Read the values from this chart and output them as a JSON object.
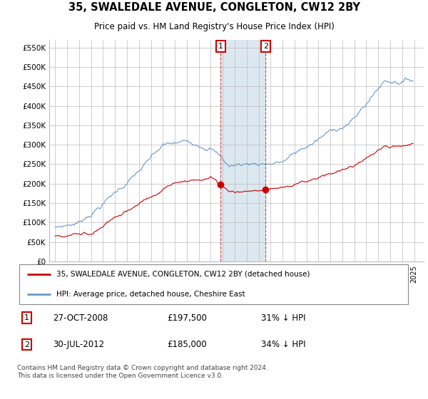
{
  "title": "35, SWALEDALE AVENUE, CONGLETON, CW12 2BY",
  "subtitle": "Price paid vs. HM Land Registry's House Price Index (HPI)",
  "ylabel_ticks": [
    "£0",
    "£50K",
    "£100K",
    "£150K",
    "£200K",
    "£250K",
    "£300K",
    "£350K",
    "£400K",
    "£450K",
    "£500K",
    "£550K"
  ],
  "ytick_values": [
    0,
    50000,
    100000,
    150000,
    200000,
    250000,
    300000,
    350000,
    400000,
    450000,
    500000,
    550000
  ],
  "ylim": [
    0,
    570000
  ],
  "legend_line1": "35, SWALEDALE AVENUE, CONGLETON, CW12 2BY (detached house)",
  "legend_line2": "HPI: Average price, detached house, Cheshire East",
  "line1_color": "#cc0000",
  "line2_color": "#6699cc",
  "annotation1_date": "27-OCT-2008",
  "annotation1_price": "£197,500",
  "annotation1_pct": "31% ↓ HPI",
  "annotation2_date": "30-JUL-2012",
  "annotation2_price": "£185,000",
  "annotation2_pct": "34% ↓ HPI",
  "footer": "Contains HM Land Registry data © Crown copyright and database right 2024.\nThis data is licensed under the Open Government Licence v3.0.",
  "shade_color": "#dce8f0",
  "box_color": "#cc0000",
  "sale1_x": 2008.826,
  "sale1_y": 197500,
  "sale2_x": 2012.583,
  "sale2_y": 185000,
  "xlim_left": 1994.5,
  "xlim_right": 2025.8
}
